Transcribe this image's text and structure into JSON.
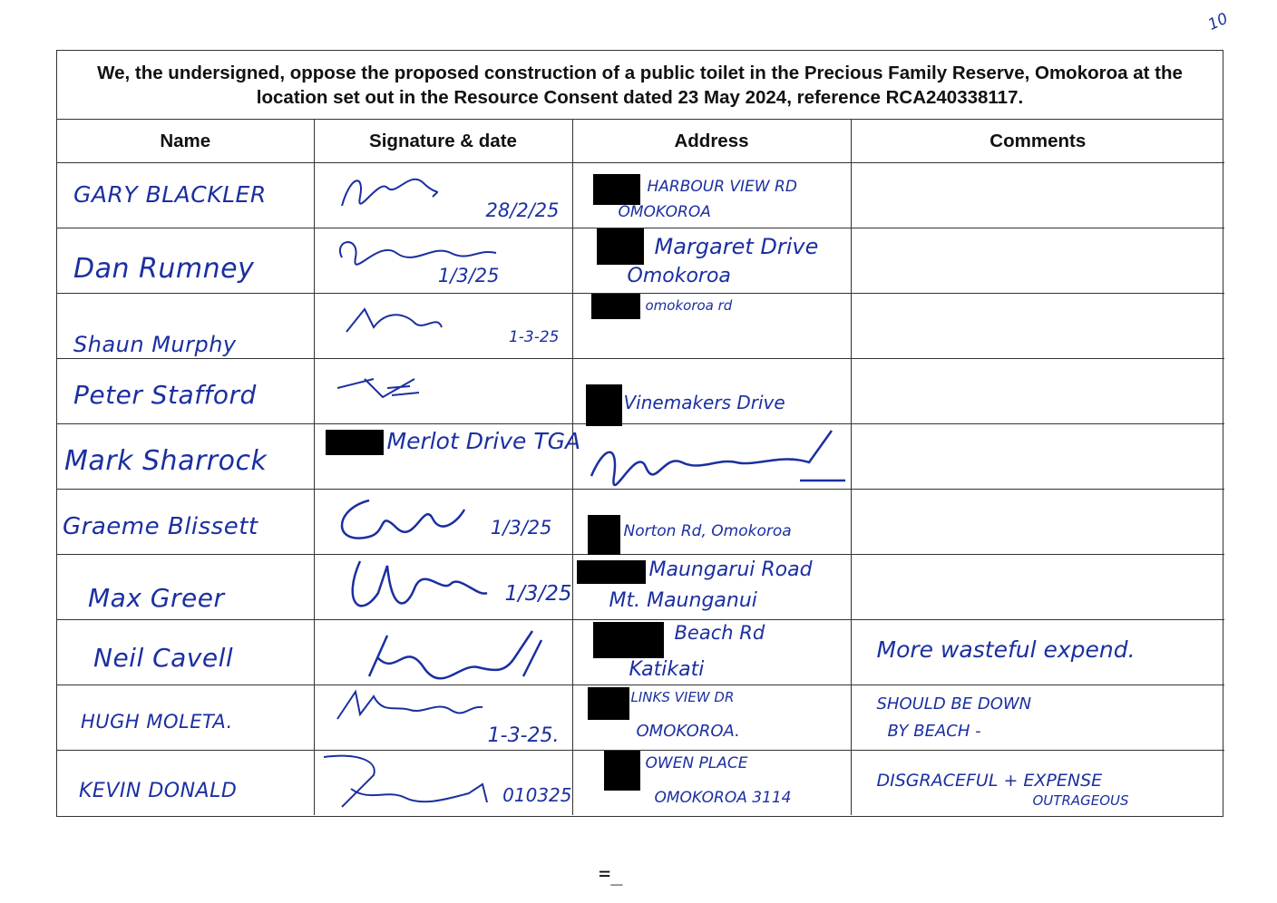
{
  "page_number": "10",
  "petition": {
    "heading": "We, the undersigned, oppose the proposed construction of a public toilet in the Precious Family Reserve, Omokoroa at the location set out in the Resource Consent dated 23 May 2024, reference RCA240338117."
  },
  "columns": [
    "Name",
    "Signature & date",
    "Address",
    "Comments"
  ],
  "rows": [
    {
      "name": "GARY BLACKLER",
      "sig_date": "28/2/25",
      "addr1": "HARBOUR VIEW RD",
      "addr2": "OMOKOROA",
      "comment1": "",
      "comment2": ""
    },
    {
      "name": "Dan Rumney",
      "sig_date": "1/3/25",
      "addr1": "Margaret Drive",
      "addr2": "Omokoroa",
      "comment1": "",
      "comment2": ""
    },
    {
      "name": "Shaun Murphy",
      "sig_date": "1-3-25",
      "addr1": "omokoroa rd",
      "addr2": "",
      "comment1": "",
      "comment2": ""
    },
    {
      "name": "Peter Stafford",
      "sig_date": "",
      "addr1": "Vinemakers Drive",
      "addr2": "",
      "comment1": "",
      "comment2": ""
    },
    {
      "name": "Mark Sharrock",
      "sig_date": "Merlot Drive TGA",
      "addr1": "",
      "addr2": "",
      "comment1": "",
      "comment2": ""
    },
    {
      "name": "Graeme Blissett",
      "sig_date": "1/3/25",
      "addr1": "Norton Rd, Omokoroa",
      "addr2": "",
      "comment1": "",
      "comment2": ""
    },
    {
      "name": "Max Greer",
      "sig_date": "1/3/25",
      "addr1": "Maungarui Road",
      "addr2": "Mt. Maunganui",
      "comment1": "",
      "comment2": ""
    },
    {
      "name": "Neil Cavell",
      "sig_date": "",
      "addr1": "Beach Rd",
      "addr2": "Katikati",
      "comment1": "More wasteful expend.",
      "comment2": ""
    },
    {
      "name": "HUGH MOLETA.",
      "sig_date": "1-3-25.",
      "addr1": "LINKS VIEW DR",
      "addr2": "OMOKOROA.",
      "comment1": "SHOULD BE DOWN",
      "comment2": "BY BEACH -"
    },
    {
      "name": "KEVIN DONALD",
      "sig_date": "010325",
      "addr1": "OWEN PLACE",
      "addr2": "OMOKOROA 3114",
      "comment1": "DISGRACEFUL + EXPENSE",
      "comment2": "OUTRAGEOUS"
    }
  ],
  "footer_mark": "=_",
  "colors": {
    "ink": "#1b2fa0",
    "rule": "#333333",
    "redaction": "#000000"
  }
}
